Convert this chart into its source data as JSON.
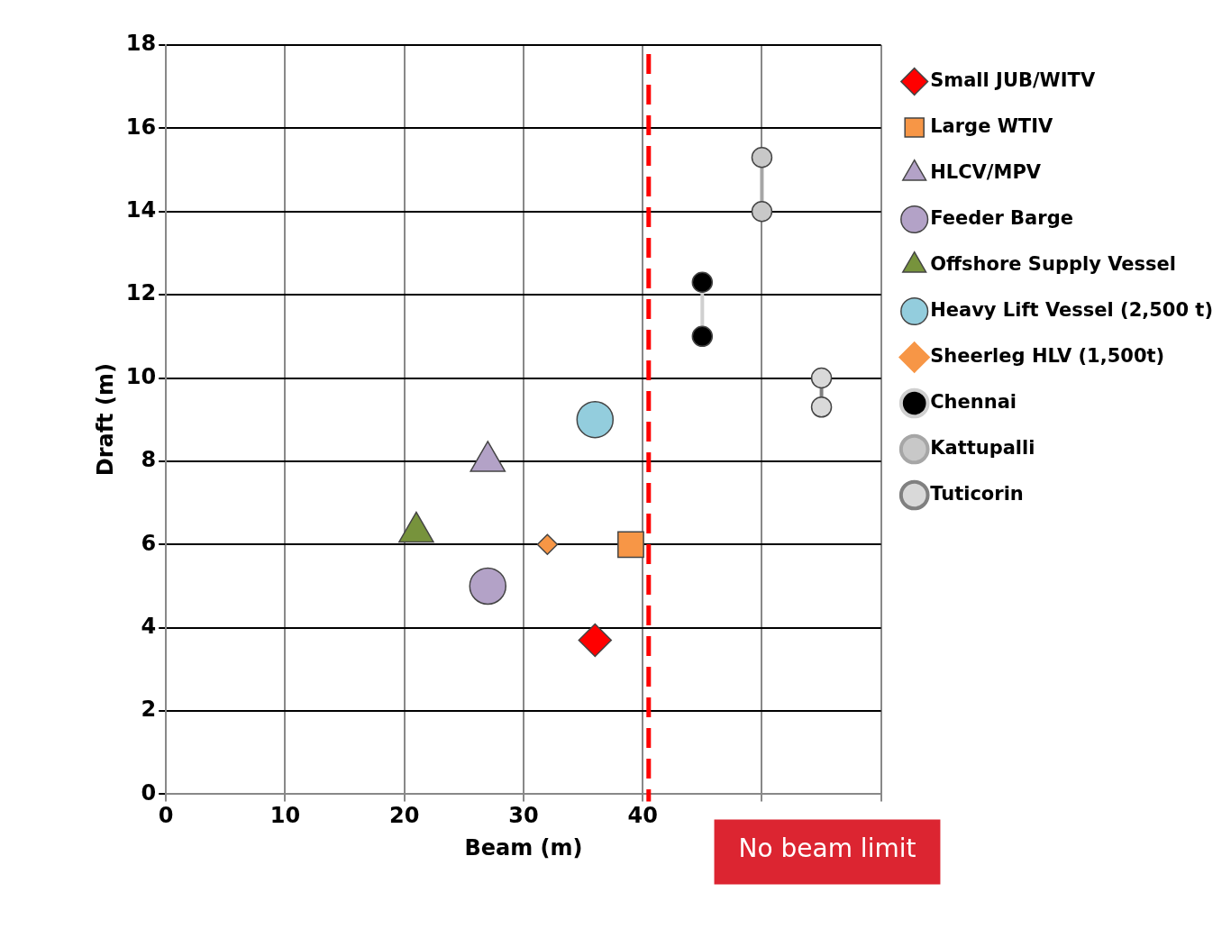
{
  "chart_data": {
    "type": "scatter",
    "xlabel": "Beam (m)",
    "ylabel": "Draft (m)",
    "xlim": [
      0,
      60
    ],
    "xticks": [
      0,
      10,
      20,
      30,
      40,
      {
        "value": 50,
        "label": null
      },
      {
        "value": 60,
        "label": null
      }
    ],
    "ylim": [
      0,
      18
    ],
    "yticks": [
      0,
      2,
      4,
      6,
      8,
      10,
      12,
      14,
      16,
      18
    ],
    "grid": true,
    "legend": "right",
    "series": [
      {
        "name": "Small JUB/WITV",
        "color": "#ff0000",
        "marker": "diamond",
        "x": [
          36
        ],
        "values": [
          3.7
        ]
      },
      {
        "name": "Large WTIV",
        "color": "#f79646",
        "marker": "square",
        "x": [
          39
        ],
        "values": [
          6
        ]
      },
      {
        "name": "HLCV/MPV",
        "color": "#b3a2c7",
        "marker": "triangle",
        "x": [
          27
        ],
        "values": [
          8
        ]
      },
      {
        "name": "Feeder Barge",
        "color": "#b3a2c7",
        "marker": "circle",
        "x": [
          27
        ],
        "values": [
          5
        ]
      },
      {
        "name": "Offshore Supply Vessel",
        "color": "#77933c",
        "marker": "triangle",
        "x": [
          21
        ],
        "values": [
          6.3
        ]
      },
      {
        "name": "Heavy Lift Vessel (2,500 t)",
        "color": "#93cddd",
        "marker": "circle",
        "x": [
          36
        ],
        "values": [
          9
        ]
      },
      {
        "name": "Sheerleg HLV (1,500t)",
        "type": "line",
        "color": "#f79646",
        "marker": "diamond",
        "x": [
          32
        ],
        "values": [
          6
        ]
      },
      {
        "name": "Chennai",
        "type": "line",
        "color": "#d0d0d0",
        "colors": [
          "#000000",
          "#000000"
        ],
        "marker": "circle",
        "x": [
          45,
          45
        ],
        "values": [
          12.3,
          11
        ]
      },
      {
        "name": "Kattupalli",
        "type": "line",
        "color": "#a6a6a6",
        "colors": [
          "#c8c8c8",
          "#c8c8c8"
        ],
        "marker": "circle",
        "x": [
          50,
          50
        ],
        "values": [
          15.3,
          14
        ]
      },
      {
        "name": "Tuticorin",
        "type": "line",
        "color": "#808080",
        "colors": [
          "#d9d9d9",
          "#d9d9d9"
        ],
        "marker": "circle",
        "x": [
          55,
          55
        ],
        "values": [
          10,
          9.3
        ]
      }
    ],
    "ref_lines": [
      {
        "axis": "x",
        "value": 40.5,
        "color": "#ff0000",
        "line_style": "dashed"
      }
    ],
    "annotations": [
      "No beam limit"
    ]
  }
}
